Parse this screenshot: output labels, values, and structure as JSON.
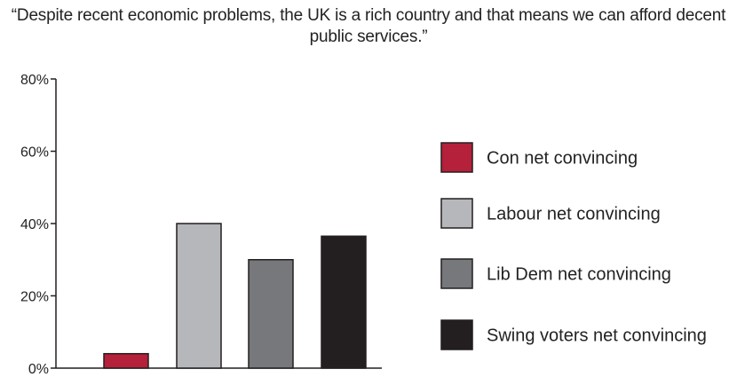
{
  "chart_data": {
    "type": "bar",
    "title": "“Despite recent economic problems, the UK is a rich country and that means we can afford decent public services.”",
    "xlabel": "",
    "ylabel": "",
    "ylim": [
      0,
      80
    ],
    "yticks": [
      0,
      20,
      40,
      60,
      80
    ],
    "ytick_format": "percent",
    "grid": false,
    "legend_position": "right",
    "series": [
      {
        "name": "Con net convincing",
        "value": 4,
        "color": "#b5203a"
      },
      {
        "name": "Labour net convincing",
        "value": 40,
        "color": "#b6b7bb"
      },
      {
        "name": "Lib Dem net convincing",
        "value": 30,
        "color": "#77787c"
      },
      {
        "name": "Swing voters net convincing",
        "value": 36.5,
        "color": "#231f20"
      }
    ]
  }
}
